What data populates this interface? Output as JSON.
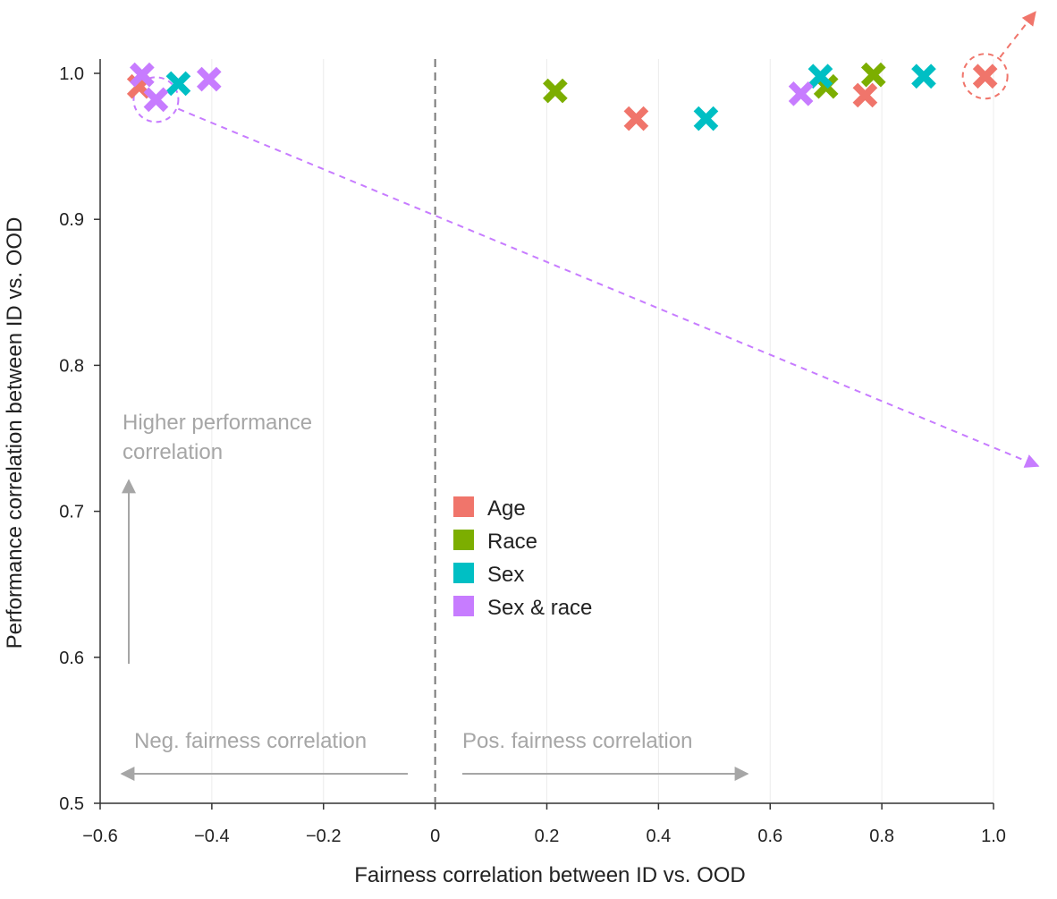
{
  "chart_data": {
    "type": "scatter",
    "title": "",
    "xlabel": "Fairness correlation between ID vs. OOD",
    "ylabel": "Performance correlation between ID vs. OOD",
    "xlim": [
      -0.6,
      1.0
    ],
    "ylim": [
      0.5,
      1.0
    ],
    "x_ticks": [
      -0.6,
      -0.4,
      -0.2,
      0,
      0.2,
      0.4,
      0.6,
      0.8,
      1.0
    ],
    "x_tick_labels": [
      "−0.6",
      "−0.4",
      "−0.2",
      "0",
      "0.2",
      "0.4",
      "0.6",
      "0.8",
      "1.0"
    ],
    "y_ticks": [
      0.5,
      0.6,
      0.7,
      0.8,
      0.9,
      1.0
    ],
    "y_tick_labels": [
      "0.5",
      "0.6",
      "0.7",
      "0.8",
      "0.9",
      "1.0"
    ],
    "grid": "vertical",
    "marker": "x",
    "legend_position": "center",
    "series": [
      {
        "name": "Age",
        "color": "#f0756b",
        "points": [
          {
            "x": -0.53,
            "y": 0.991
          },
          {
            "x": 0.36,
            "y": 0.969
          },
          {
            "x": 0.77,
            "y": 0.985
          },
          {
            "x": 0.985,
            "y": 0.998
          }
        ]
      },
      {
        "name": "Race",
        "color": "#7cae00",
        "points": [
          {
            "x": 0.215,
            "y": 0.988
          },
          {
            "x": 0.7,
            "y": 0.991
          },
          {
            "x": 0.785,
            "y": 0.999
          }
        ]
      },
      {
        "name": "Sex",
        "color": "#00bfc4",
        "points": [
          {
            "x": -0.46,
            "y": 0.993
          },
          {
            "x": 0.485,
            "y": 0.969
          },
          {
            "x": 0.69,
            "y": 0.998
          },
          {
            "x": 0.875,
            "y": 0.998
          }
        ]
      },
      {
        "name": "Sex & race",
        "color": "#c77cff",
        "points": [
          {
            "x": -0.525,
            "y": 0.999
          },
          {
            "x": -0.5,
            "y": 0.982
          },
          {
            "x": -0.405,
            "y": 0.996
          },
          {
            "x": 0.655,
            "y": 0.986
          }
        ]
      }
    ],
    "annotations": {
      "higher_performance": [
        "Higher performance",
        "correlation"
      ],
      "neg_fairness": "Neg. fairness correlation",
      "pos_fairness": "Pos. fairness correlation"
    },
    "reference_line": {
      "x": 0,
      "style": "dashed"
    },
    "highlights": [
      {
        "series": "Sex & race",
        "x": -0.5,
        "y": 0.982,
        "arrow_to": {
          "x": 1.08,
          "y": 0.731
        }
      },
      {
        "series": "Age",
        "x": 0.985,
        "y": 0.998,
        "arrow_to": {
          "x": 1.075,
          "y": 1.042
        }
      }
    ]
  }
}
